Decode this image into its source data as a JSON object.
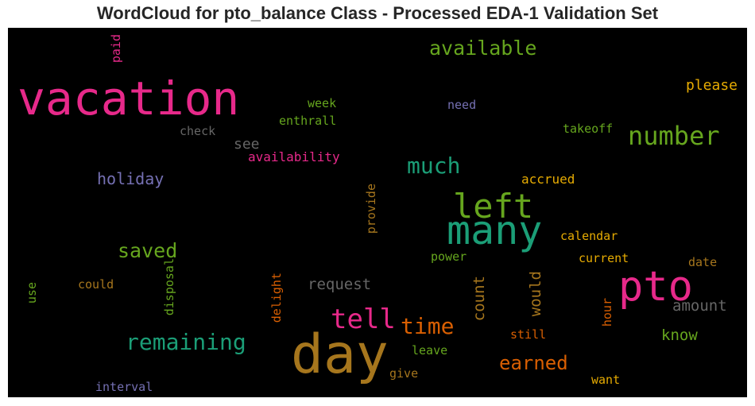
{
  "title": "WordCloud for pto_balance Class - Processed EDA-1 Validation Set",
  "colors": {
    "magenta": "#e7298a",
    "green": "#66a61e",
    "teal": "#1b9e77",
    "orange": "#d95f02",
    "gold": "#e6ab02",
    "purple": "#7570b3",
    "brown": "#a6761d",
    "gray": "#666666"
  },
  "words": {
    "vacation": "vacation",
    "pto": "pto",
    "day": "day",
    "many": "many",
    "left": "left",
    "tell": "tell",
    "time": "time",
    "number": "number",
    "much": "much",
    "remaining": "remaining",
    "saved": "saved",
    "available": "available",
    "earned": "earned",
    "holiday": "holiday",
    "request": "request",
    "amount": "amount",
    "please": "please",
    "count": "count",
    "would": "would",
    "see": "see",
    "know": "know",
    "accrued": "accrued",
    "takeoff": "takeoff",
    "check": "check",
    "week": "week",
    "enthrall": "enthrall",
    "need": "need",
    "availability": "availability",
    "provide": "provide",
    "calendar": "calendar",
    "power": "power",
    "current": "current",
    "date": "date",
    "could": "could",
    "disposal": "disposal",
    "use": "use",
    "delight": "delight",
    "paid": "paid",
    "still": "still",
    "hour": "hour",
    "leave": "leave",
    "give": "give",
    "want": "want",
    "interval": "interval"
  }
}
